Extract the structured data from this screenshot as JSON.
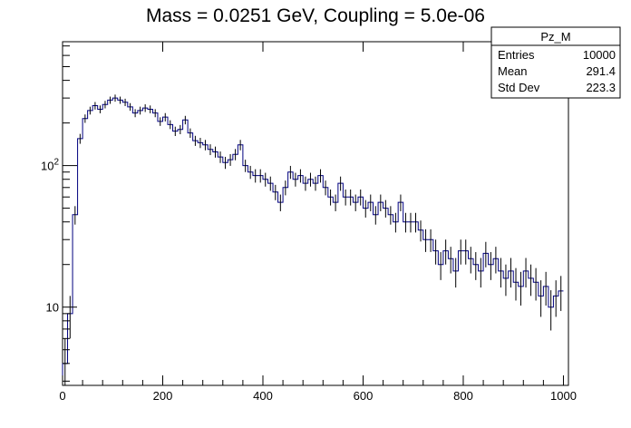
{
  "chart_data": {
    "type": "histogram",
    "title": "Mass = 0.0251 GeV, Coupling = 5.0e-06",
    "xlabel": "",
    "ylabel": "",
    "x_scale": "linear",
    "y_scale": "log",
    "xlim": [
      0,
      1010
    ],
    "ylim": [
      2.8,
      750
    ],
    "x_ticks": [
      {
        "value": 0,
        "label": "0"
      },
      {
        "value": 200,
        "label": "200"
      },
      {
        "value": 400,
        "label": "400"
      },
      {
        "value": 600,
        "label": "600"
      },
      {
        "value": 800,
        "label": "800"
      },
      {
        "value": 1000,
        "label": "1000"
      }
    ],
    "y_ticks_major": [
      {
        "value": 10,
        "label": "10",
        "base": "10",
        "exp": ""
      },
      {
        "value": 100,
        "label": "10^2",
        "base": "10",
        "exp": "2"
      }
    ],
    "line_color": "#00007f",
    "bin_width": 10,
    "bin_start": 0,
    "values": [
      4,
      9,
      45,
      155,
      215,
      245,
      265,
      250,
      270,
      290,
      300,
      290,
      280,
      260,
      235,
      245,
      255,
      250,
      235,
      205,
      220,
      195,
      175,
      180,
      210,
      170,
      150,
      145,
      140,
      130,
      125,
      115,
      105,
      110,
      120,
      140,
      100,
      90,
      85,
      85,
      80,
      75,
      65,
      55,
      70,
      90,
      80,
      85,
      75,
      80,
      75,
      85,
      70,
      60,
      55,
      75,
      60,
      60,
      55,
      60,
      50,
      55,
      45,
      55,
      50,
      45,
      40,
      55,
      40,
      40,
      40,
      35,
      30,
      30,
      25,
      20,
      25,
      22,
      18,
      25,
      25,
      22,
      20,
      18,
      24,
      20,
      22,
      18,
      16,
      18,
      15,
      14,
      18,
      16,
      15,
      12,
      14,
      10,
      12,
      13
    ],
    "stats": {
      "name": "Pz_M",
      "rows": [
        {
          "label": "Entries",
          "value": "10000"
        },
        {
          "label": "Mean",
          "value": "291.4"
        },
        {
          "label": "Std Dev",
          "value": "223.3"
        }
      ]
    }
  }
}
